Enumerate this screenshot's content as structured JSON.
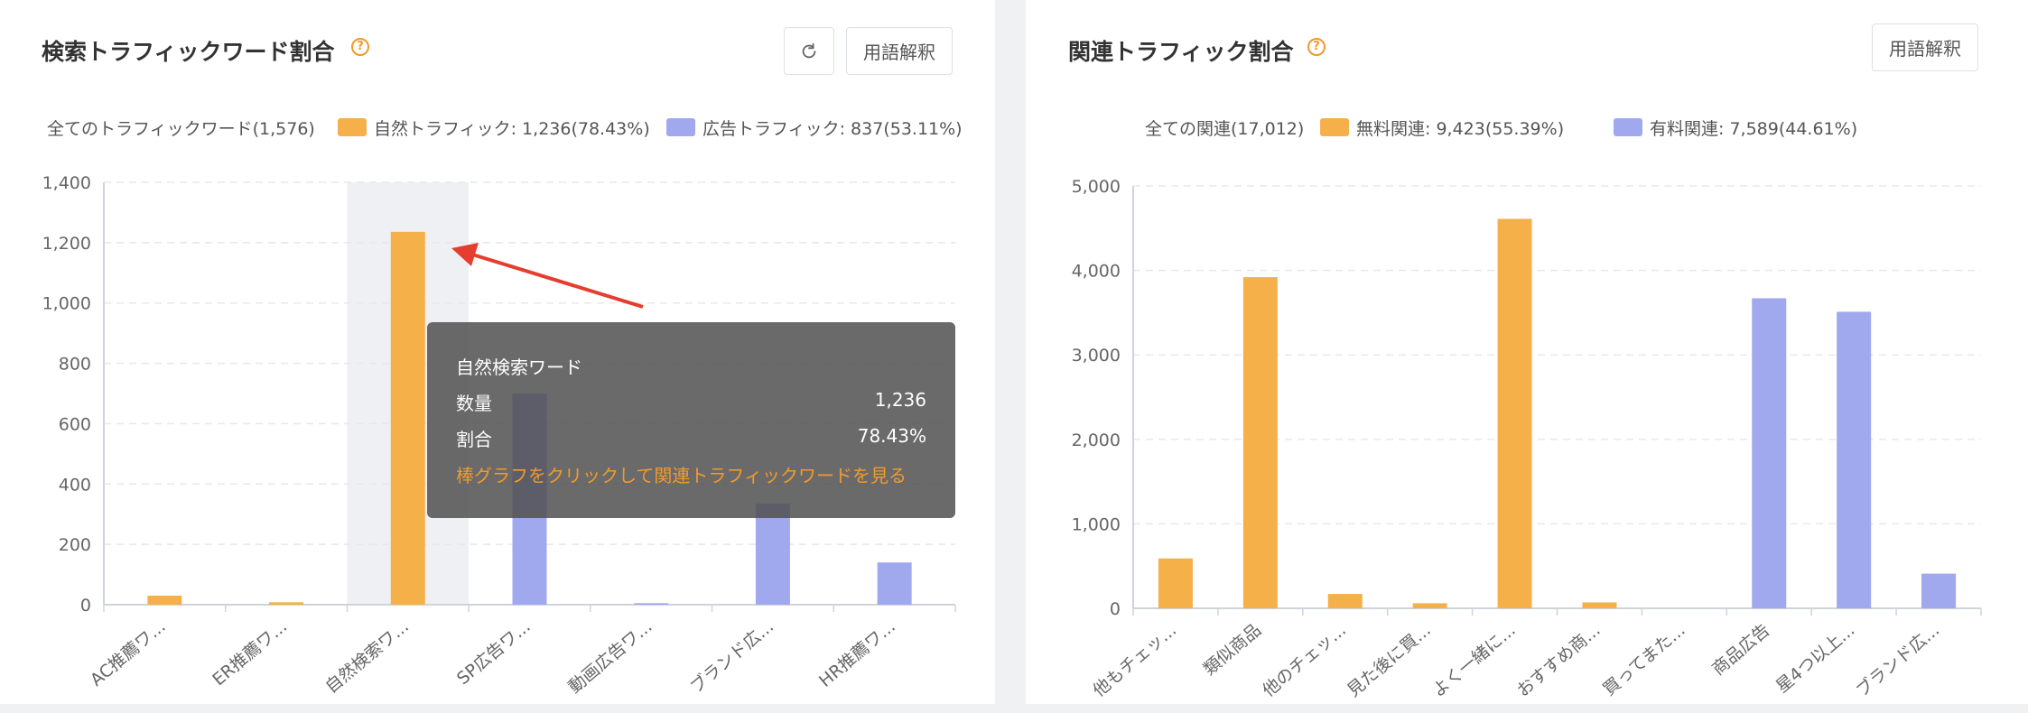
{
  "colors": {
    "orange": "#f5b04a",
    "purple": "#a0a8ee",
    "orange_text": "#f19a2a"
  },
  "left": {
    "title": "検索トラフィックワード割合",
    "help_icon": "question-circle-icon",
    "refresh_icon": "refresh-icon",
    "glossary_label": "用語解釈",
    "legend": {
      "total": "全てのトラフィックワード(1,576)",
      "organic": "自然トラフィック: 1,236(78.43%)",
      "ad": "広告トラフィック: 837(53.11%)"
    },
    "tooltip": {
      "title": "自然検索ワード",
      "count_label": "数量",
      "count_value": "1,236",
      "ratio_label": "割合",
      "ratio_value": "78.43%",
      "hint": "棒グラフをクリックして関連トラフィックワードを見る"
    }
  },
  "right": {
    "title": "関連トラフィック割合",
    "help_icon": "question-circle-icon",
    "glossary_label": "用語解釈",
    "legend": {
      "total": "全ての関連(17,012)",
      "free": "無料関連: 9,423(55.39%)",
      "paid": "有料関連: 7,589(44.61%)"
    }
  },
  "chart_data": [
    {
      "type": "bar",
      "title": "検索トラフィックワード割合",
      "categories": [
        "AC推薦ワ...",
        "ER推薦ワ...",
        "自然検索ワ...",
        "SP広告ワ...",
        "動画広告ワ...",
        "ブランド広...",
        "HR推薦ワ..."
      ],
      "values": [
        30,
        8,
        1236,
        700,
        5,
        335,
        140
      ],
      "series_colors": [
        "orange",
        "orange",
        "orange",
        "purple",
        "purple",
        "purple",
        "purple"
      ],
      "ylim": [
        0,
        1400
      ],
      "yticks": [
        0,
        200,
        400,
        600,
        800,
        1000,
        1200,
        1400
      ],
      "ytick_labels": [
        "0",
        "200",
        "400",
        "600",
        "800",
        "1,000",
        "1,200",
        "1,400"
      ],
      "highlighted_category": "自然検索ワ...",
      "grid": true
    },
    {
      "type": "bar",
      "title": "関連トラフィック割合",
      "categories": [
        "他もチェッ...",
        "類似商品",
        "他のチェッ...",
        "見た後に買...",
        "よく一緒に...",
        "おすすめ商...",
        "買ってまた...",
        "商品広告",
        "星4つ以上...",
        "ブランド広..."
      ],
      "values": [
        590,
        3920,
        170,
        60,
        4610,
        70,
        0,
        3670,
        3510,
        410
      ],
      "series_colors": [
        "orange",
        "orange",
        "orange",
        "orange",
        "orange",
        "orange",
        "orange",
        "purple",
        "purple",
        "purple"
      ],
      "ylim": [
        0,
        5000
      ],
      "yticks": [
        0,
        1000,
        2000,
        3000,
        4000,
        5000
      ],
      "ytick_labels": [
        "0",
        "1,000",
        "2,000",
        "3,000",
        "4,000",
        "5,000"
      ],
      "grid": true
    }
  ]
}
